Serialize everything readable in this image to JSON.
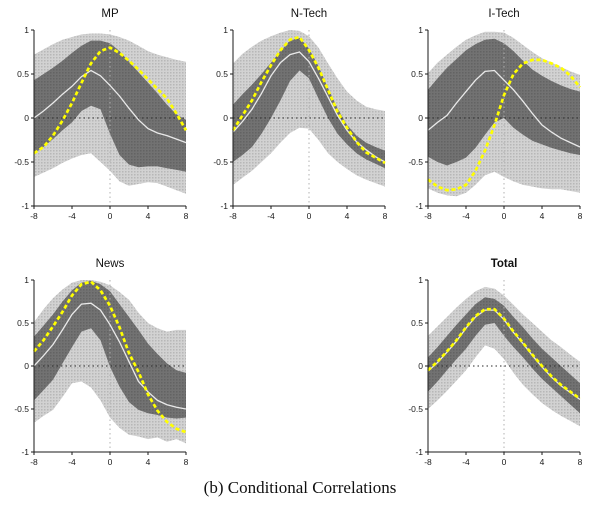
{
  "caption": "(b) Conditional Correlations",
  "axes": {
    "x_ticks": [
      "-8",
      "-4",
      "0",
      "4",
      "8"
    ],
    "y_ticks": [
      "1",
      "0.5",
      "0",
      "-0.5",
      "-1"
    ],
    "x_range": [
      -8,
      8
    ],
    "y_range": [
      -1,
      1
    ],
    "grid": "dotted zero lines only"
  },
  "colors": {
    "outer_band": "#cfcfcf",
    "outer_band_dot": "#b6b6b6",
    "inner_band": "#6f6f6f",
    "inner_band_dot": "#626262",
    "median_line": "#e9e9e9",
    "estimate_line": "#ffff00",
    "axis": "#1a1a1a",
    "zero_h_line": "#2a2a2a",
    "zero_v_line": "#b0b0b0",
    "background": "#ffffff"
  },
  "chart_data": [
    {
      "type": "area",
      "title": "MP",
      "title_bold": false,
      "x": [
        -8,
        -7,
        -6,
        -5,
        -4,
        -3,
        -2,
        -1,
        0,
        1,
        2,
        3,
        4,
        5,
        6,
        7,
        8
      ],
      "bands": {
        "outer_upper": [
          0.72,
          0.78,
          0.84,
          0.89,
          0.92,
          0.95,
          0.96,
          0.96,
          0.95,
          0.92,
          0.88,
          0.82,
          0.76,
          0.72,
          0.69,
          0.66,
          0.64
        ],
        "inner_upper": [
          0.43,
          0.5,
          0.57,
          0.65,
          0.74,
          0.82,
          0.88,
          0.88,
          0.85,
          0.76,
          0.64,
          0.52,
          0.4,
          0.28,
          0.15,
          0.04,
          -0.02
        ],
        "inner_lower": [
          -0.4,
          -0.33,
          -0.24,
          -0.14,
          -0.05,
          0.08,
          0.14,
          0.1,
          -0.18,
          -0.42,
          -0.53,
          -0.56,
          -0.55,
          -0.55,
          -0.57,
          -0.59,
          -0.61
        ],
        "outer_lower": [
          -0.67,
          -0.62,
          -0.57,
          -0.51,
          -0.46,
          -0.42,
          -0.4,
          -0.5,
          -0.6,
          -0.72,
          -0.77,
          -0.75,
          -0.73,
          -0.74,
          -0.78,
          -0.82,
          -0.86
        ]
      },
      "series": [
        {
          "name": "posterior-median",
          "values": [
            0.0,
            0.08,
            0.17,
            0.27,
            0.36,
            0.47,
            0.54,
            0.48,
            0.37,
            0.25,
            0.11,
            -0.02,
            -0.12,
            -0.17,
            -0.2,
            -0.24,
            -0.28
          ]
        },
        {
          "name": "conditional-correlation-estimate",
          "values": [
            -0.4,
            -0.33,
            -0.2,
            -0.03,
            0.17,
            0.4,
            0.62,
            0.76,
            0.8,
            0.74,
            0.65,
            0.55,
            0.44,
            0.33,
            0.22,
            0.05,
            -0.14
          ]
        }
      ]
    },
    {
      "type": "area",
      "title": "N-Tech",
      "title_bold": false,
      "x": [
        -8,
        -7,
        -6,
        -5,
        -4,
        -3,
        -2,
        -1,
        0,
        1,
        2,
        3,
        4,
        5,
        6,
        7,
        8
      ],
      "bands": {
        "outer_upper": [
          0.62,
          0.73,
          0.81,
          0.88,
          0.93,
          0.97,
          1.0,
          0.99,
          0.93,
          0.8,
          0.62,
          0.45,
          0.3,
          0.2,
          0.13,
          0.1,
          0.08
        ],
        "inner_upper": [
          0.15,
          0.27,
          0.38,
          0.5,
          0.63,
          0.76,
          0.88,
          0.91,
          0.79,
          0.59,
          0.34,
          0.11,
          -0.08,
          -0.2,
          -0.28,
          -0.33,
          -0.37
        ],
        "inner_lower": [
          -0.5,
          -0.42,
          -0.33,
          -0.18,
          0.0,
          0.2,
          0.42,
          0.54,
          0.45,
          0.22,
          0.0,
          -0.18,
          -0.3,
          -0.4,
          -0.47,
          -0.52,
          -0.57
        ],
        "outer_lower": [
          -0.76,
          -0.68,
          -0.6,
          -0.5,
          -0.4,
          -0.28,
          -0.17,
          -0.11,
          -0.12,
          -0.25,
          -0.4,
          -0.5,
          -0.58,
          -0.65,
          -0.7,
          -0.74,
          -0.78
        ]
      },
      "series": [
        {
          "name": "posterior-median",
          "values": [
            -0.16,
            -0.04,
            0.1,
            0.28,
            0.48,
            0.63,
            0.72,
            0.75,
            0.64,
            0.45,
            0.24,
            0.03,
            -0.14,
            -0.27,
            -0.36,
            -0.44,
            -0.5
          ]
        },
        {
          "name": "conditional-correlation-estimate",
          "values": [
            -0.14,
            0.03,
            0.2,
            0.41,
            0.6,
            0.77,
            0.89,
            0.92,
            0.77,
            0.57,
            0.32,
            0.07,
            -0.11,
            -0.27,
            -0.39,
            -0.45,
            -0.51
          ]
        }
      ]
    },
    {
      "type": "area",
      "title": "I-Tech",
      "title_bold": false,
      "x": [
        -8,
        -7,
        -6,
        -5,
        -4,
        -3,
        -2,
        -1,
        0,
        1,
        2,
        3,
        4,
        5,
        6,
        7,
        8
      ],
      "bands": {
        "outer_upper": [
          0.51,
          0.63,
          0.72,
          0.81,
          0.89,
          0.94,
          0.98,
          0.98,
          0.97,
          0.91,
          0.83,
          0.75,
          0.68,
          0.63,
          0.58,
          0.53,
          0.49
        ],
        "inner_upper": [
          0.32,
          0.45,
          0.57,
          0.67,
          0.77,
          0.84,
          0.89,
          0.9,
          0.85,
          0.76,
          0.65,
          0.55,
          0.48,
          0.42,
          0.37,
          0.33,
          0.3
        ],
        "inner_lower": [
          -0.44,
          -0.5,
          -0.54,
          -0.5,
          -0.45,
          -0.34,
          -0.19,
          -0.05,
          0.0,
          -0.11,
          -0.19,
          -0.26,
          -0.3,
          -0.34,
          -0.37,
          -0.4,
          -0.42
        ],
        "outer_lower": [
          -0.8,
          -0.85,
          -0.88,
          -0.89,
          -0.85,
          -0.76,
          -0.65,
          -0.61,
          -0.67,
          -0.72,
          -0.76,
          -0.78,
          -0.8,
          -0.81,
          -0.81,
          -0.83,
          -0.85
        ]
      },
      "series": [
        {
          "name": "posterior-median",
          "values": [
            -0.14,
            -0.05,
            0.03,
            0.17,
            0.3,
            0.43,
            0.53,
            0.54,
            0.43,
            0.32,
            0.19,
            0.05,
            -0.08,
            -0.16,
            -0.23,
            -0.28,
            -0.33
          ]
        },
        {
          "name": "conditional-correlation-estimate",
          "values": [
            -0.7,
            -0.78,
            -0.82,
            -0.81,
            -0.76,
            -0.6,
            -0.37,
            -0.08,
            0.26,
            0.5,
            0.62,
            0.66,
            0.66,
            0.62,
            0.57,
            0.48,
            0.35
          ]
        }
      ]
    },
    {
      "type": "area",
      "title": "News",
      "title_bold": false,
      "x": [
        -8,
        -7,
        -6,
        -5,
        -4,
        -3,
        -2,
        -1,
        0,
        1,
        2,
        3,
        4,
        5,
        6,
        7,
        8
      ],
      "bands": {
        "outer_upper": [
          0.51,
          0.66,
          0.79,
          0.89,
          0.97,
          1.0,
          1.0,
          0.98,
          0.94,
          0.86,
          0.77,
          0.62,
          0.5,
          0.44,
          0.4,
          0.42,
          0.42
        ],
        "inner_upper": [
          0.34,
          0.47,
          0.6,
          0.75,
          0.88,
          0.97,
          0.99,
          0.95,
          0.87,
          0.72,
          0.57,
          0.42,
          0.26,
          0.14,
          0.03,
          -0.05,
          -0.08
        ],
        "inner_lower": [
          -0.4,
          -0.28,
          -0.16,
          0.03,
          0.22,
          0.4,
          0.44,
          0.3,
          -0.01,
          -0.24,
          -0.42,
          -0.51,
          -0.55,
          -0.57,
          -0.6,
          -0.61,
          -0.6
        ],
        "outer_lower": [
          -0.66,
          -0.58,
          -0.51,
          -0.36,
          -0.2,
          -0.18,
          -0.25,
          -0.4,
          -0.6,
          -0.72,
          -0.8,
          -0.82,
          -0.85,
          -0.83,
          -0.88,
          -0.85,
          -0.9
        ]
      },
      "series": [
        {
          "name": "posterior-median",
          "values": [
            0.0,
            0.12,
            0.25,
            0.42,
            0.6,
            0.72,
            0.73,
            0.65,
            0.48,
            0.28,
            0.05,
            -0.18,
            -0.3,
            -0.4,
            -0.45,
            -0.48,
            -0.5
          ]
        },
        {
          "name": "conditional-correlation-estimate",
          "values": [
            0.17,
            0.3,
            0.46,
            0.63,
            0.82,
            0.95,
            0.98,
            0.88,
            0.7,
            0.45,
            0.15,
            -0.07,
            -0.33,
            -0.52,
            -0.65,
            -0.73,
            -0.77
          ]
        }
      ]
    },
    {
      "type": "area",
      "title": "Total",
      "title_bold": true,
      "x": [
        -8,
        -7,
        -6,
        -5,
        -4,
        -3,
        -2,
        -1,
        0,
        1,
        2,
        3,
        4,
        5,
        6,
        7,
        8
      ],
      "bands": {
        "outer_upper": [
          0.35,
          0.46,
          0.57,
          0.68,
          0.78,
          0.87,
          0.92,
          0.9,
          0.82,
          0.71,
          0.6,
          0.5,
          0.4,
          0.3,
          0.22,
          0.13,
          0.05
        ],
        "inner_upper": [
          0.1,
          0.22,
          0.35,
          0.48,
          0.6,
          0.72,
          0.8,
          0.78,
          0.7,
          0.57,
          0.45,
          0.32,
          0.2,
          0.1,
          0.0,
          -0.1,
          -0.2
        ],
        "inner_lower": [
          -0.3,
          -0.18,
          -0.05,
          0.08,
          0.2,
          0.35,
          0.48,
          0.5,
          0.35,
          0.22,
          0.1,
          -0.03,
          -0.15,
          -0.25,
          -0.35,
          -0.45,
          -0.55
        ],
        "outer_lower": [
          -0.5,
          -0.4,
          -0.29,
          -0.17,
          -0.05,
          0.1,
          0.24,
          0.2,
          0.08,
          -0.08,
          -0.22,
          -0.33,
          -0.43,
          -0.51,
          -0.58,
          -0.64,
          -0.7
        ]
      },
      "series": [
        {
          "name": "posterior-median",
          "values": [
            -0.06,
            0.04,
            0.16,
            0.29,
            0.44,
            0.57,
            0.65,
            0.65,
            0.54,
            0.39,
            0.26,
            0.12,
            -0.01,
            -0.13,
            -0.23,
            -0.31,
            -0.39
          ]
        },
        {
          "name": "conditional-correlation-estimate",
          "values": [
            -0.05,
            0.05,
            0.17,
            0.3,
            0.45,
            0.58,
            0.66,
            0.66,
            0.55,
            0.4,
            0.27,
            0.13,
            0.0,
            -0.12,
            -0.22,
            -0.3,
            -0.38
          ]
        }
      ]
    }
  ]
}
